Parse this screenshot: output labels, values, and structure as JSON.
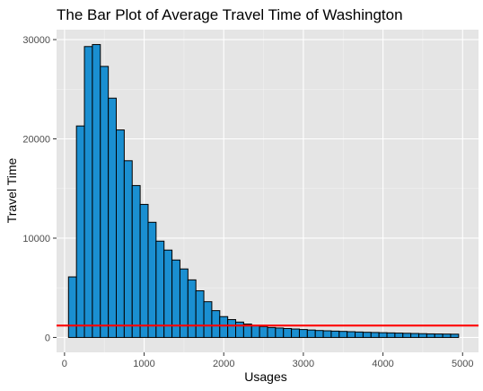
{
  "chart_data": {
    "type": "bar",
    "title": "The Bar Plot of Average Travel Time of Washington",
    "xlabel": "Usages",
    "ylabel": "Travel Time",
    "xlim": [
      -100,
      5200
    ],
    "ylim": [
      -1500,
      31000
    ],
    "bin_width": 100,
    "bin_starts": [
      50,
      150,
      250,
      350,
      450,
      550,
      650,
      750,
      850,
      950,
      1050,
      1150,
      1250,
      1350,
      1450,
      1550,
      1650,
      1750,
      1850,
      1950,
      2050,
      2150,
      2250,
      2350,
      2450,
      2550,
      2650,
      2750,
      2850,
      2950,
      3050,
      3150,
      3250,
      3350,
      3450,
      3550,
      3650,
      3750,
      3850,
      3950,
      4050,
      4150,
      4250,
      4350,
      4450,
      4550,
      4650,
      4750,
      4850
    ],
    "values": [
      6100,
      21300,
      29300,
      29500,
      27300,
      24100,
      20900,
      17800,
      15300,
      13400,
      11600,
      9700,
      8800,
      7800,
      6900,
      5800,
      4700,
      3600,
      2700,
      2100,
      1800,
      1550,
      1350,
      1200,
      1100,
      1000,
      950,
      900,
      850,
      800,
      750,
      700,
      670,
      640,
      610,
      580,
      550,
      520,
      500,
      480,
      460,
      440,
      420,
      400,
      380,
      360,
      350,
      340,
      330
    ],
    "reference_line": {
      "y": 1200,
      "color": "#ff0000"
    },
    "x_ticks": [
      0,
      1000,
      2000,
      3000,
      4000,
      5000
    ],
    "x_tick_labels": [
      "0",
      "1000",
      "2000",
      "3000",
      "4000",
      "5000"
    ],
    "y_ticks": [
      0,
      10000,
      20000,
      30000
    ],
    "y_tick_labels": [
      "0",
      "10000",
      "20000",
      "30000"
    ],
    "grid": true,
    "colors": {
      "bar_fill": "#1a8fd1",
      "bar_stroke": "#000000",
      "panel_bg": "#e5e5e5",
      "grid_major": "#ffffff",
      "grid_minor": "#f2f2f2",
      "tick_text": "#4d4d4d"
    }
  }
}
